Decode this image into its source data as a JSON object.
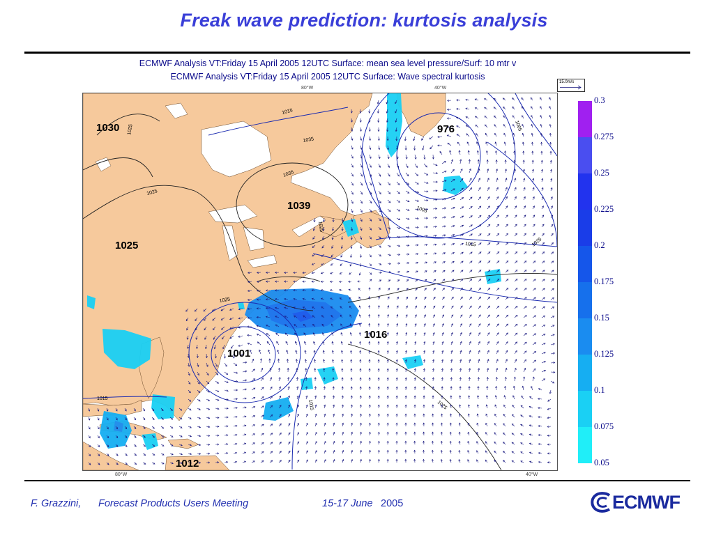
{
  "slide": {
    "title": "Freak wave prediction: kurtosis analysis"
  },
  "map": {
    "header_line1": "ECMWF  Analysis VT:Friday 15 April 2005 12UTC Surface: mean sea level pressure/Surf:  10 mtr v",
    "header_line2": "ECMWF  Analysis VT:Friday 15 April 2005 12UTC Surface: Wave spectral kurtosis",
    "lon_labels": [
      "80°W",
      "40°W",
      "80°W",
      "40°W"
    ],
    "reference_vector_label": "15.0m/s",
    "pressure_centres": [
      "1030",
      "976",
      "1039",
      "1025",
      "1016",
      "1001",
      "1012"
    ],
    "isobar_labels": [
      "1025",
      "1035",
      "1035",
      "1025",
      "1005",
      "1015",
      "1025",
      "1025",
      "1015",
      "1015",
      "1025",
      "1015",
      "1025",
      "1005"
    ],
    "colors": {
      "land": "#f6c99c",
      "sea": "#ffffff",
      "wind_arrows": "#1a1a80",
      "isobars_land": "#222222",
      "isobars_sea": "#1a2ab0"
    }
  },
  "colorbar": {
    "labels": [
      "0.3",
      "0.275",
      "0.25",
      "0.225",
      "0.2",
      "0.175",
      "0.15",
      "0.125",
      "0.1",
      "0.075",
      "0.05"
    ],
    "colors": [
      "#a020f0",
      "#7a3ef0",
      "#4a4ef0",
      "#2233ee",
      "#1a3de8",
      "#1556ea",
      "#1670ec",
      "#1a8cf0",
      "#16aef2",
      "#1ad0f4",
      "#20eef8"
    ]
  },
  "footer": {
    "author": "F. Grazzini,",
    "meeting": "Forecast Products Users Meeting",
    "dates": "15-17 June",
    "year": "2005",
    "logo_text": "ECMWF"
  }
}
